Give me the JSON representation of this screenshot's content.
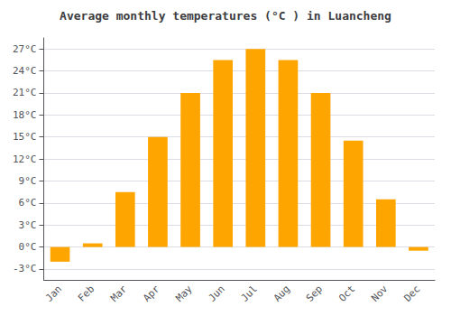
{
  "chart_data": {
    "type": "bar",
    "title": "Average monthly temperatures (°C ) in Luancheng",
    "categories": [
      "Jan",
      "Feb",
      "Mar",
      "Apr",
      "May",
      "Jun",
      "Jul",
      "Aug",
      "Sep",
      "Oct",
      "Nov",
      "Dec"
    ],
    "values": [
      -2,
      0.5,
      7.5,
      15,
      21,
      25.5,
      27,
      25.5,
      21,
      14.5,
      6.5,
      -0.5
    ],
    "color": "#FFA500",
    "ylim": [
      -4.5,
      28.5
    ],
    "yticks": [
      {
        "value": -3,
        "label": "-3°C"
      },
      {
        "value": 0,
        "label": "0°C"
      },
      {
        "value": 3,
        "label": "3°C"
      },
      {
        "value": 6,
        "label": "6°C"
      },
      {
        "value": 9,
        "label": "9°C"
      },
      {
        "value": 12,
        "label": "12°C"
      },
      {
        "value": 15,
        "label": "15°C"
      },
      {
        "value": 18,
        "label": "18°C"
      },
      {
        "value": 21,
        "label": "21°C"
      },
      {
        "value": 24,
        "label": "24°C"
      },
      {
        "value": 27,
        "label": "27°C"
      }
    ],
    "grid": true
  }
}
